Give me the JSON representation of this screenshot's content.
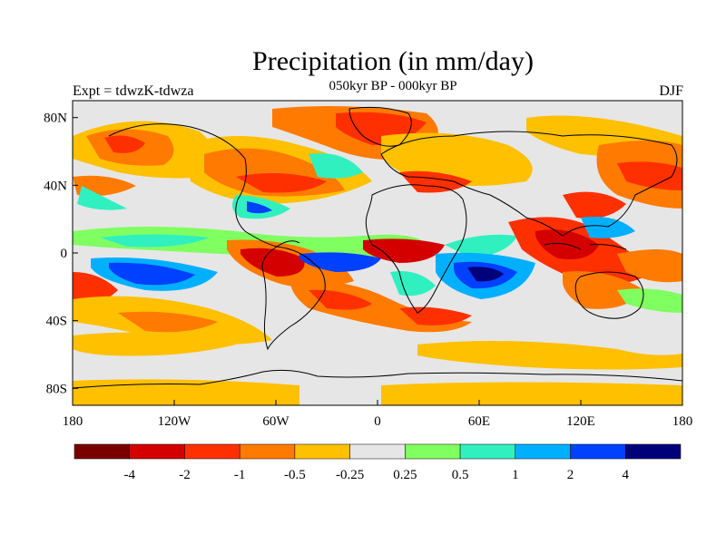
{
  "title": "Precipitation (in mm/day)",
  "left_label": "Expt = tdwzK-tdwza",
  "center_label": "050kyr BP - 000kyr BP",
  "right_label": "DJF",
  "map": {
    "lon_ticks": [
      "180",
      "120W",
      "60W",
      "0",
      "60E",
      "120E",
      "180"
    ],
    "lat_ticks": [
      "80N",
      "40N",
      "0",
      "40S",
      "80S"
    ],
    "lon_range": [
      -180,
      180
    ],
    "lat_range": [
      -90,
      90
    ]
  },
  "colorbar": {
    "colors": [
      "#7a0000",
      "#d40000",
      "#ff3000",
      "#ff7a00",
      "#ffc000",
      "#e6e6e6",
      "#80ff60",
      "#30f0c0",
      "#00b0ff",
      "#0040ff",
      "#00007a"
    ],
    "labels": [
      "-4",
      "-2",
      "-1",
      "-0.5",
      "-0.25",
      "0.25",
      "0.5",
      "1",
      "2",
      "4"
    ]
  },
  "field_colors": {
    "neutral": "#e6e6e6",
    "dry_light": "#ffc000",
    "dry_mid": "#ff7a00",
    "dry_strong": "#ff3000",
    "dry_heavy": "#d40000",
    "wet_light": "#80ff60",
    "wet_mid": "#30f0c0",
    "wet_strong": "#00b0ff",
    "wet_heavy": "#0040ff",
    "wet_extreme": "#00007a"
  }
}
